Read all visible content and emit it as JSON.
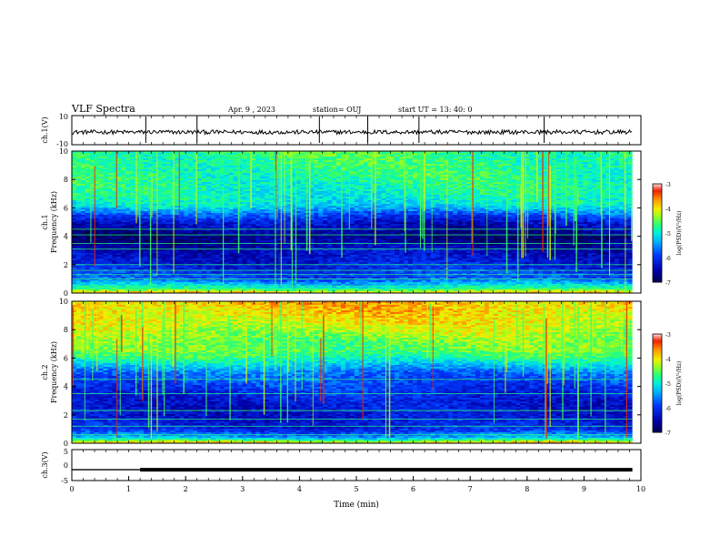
{
  "header": {
    "title": "VLF Spectra",
    "date": "Apr. 9 , 2023",
    "station": "station= OUJ",
    "start_time": "start UT = 13: 40: 0"
  },
  "chart_data": [
    {
      "type": "line",
      "name": "ch1-waveform",
      "ylabel": "ch.1(V)",
      "ylim": [
        -10,
        10
      ],
      "tick_labels": [
        "10",
        "-10"
      ],
      "xlim": [
        0,
        10
      ],
      "spikes_min": [
        2.2,
        4.35,
        8.3,
        1.3,
        5.2,
        6.1
      ]
    },
    {
      "type": "heatmap",
      "name": "ch1-spectrogram",
      "ylabel_channel": "ch.1",
      "ylabel": "Frequency (kHz)",
      "ylim": [
        0,
        10
      ],
      "y_ticks": [
        "0",
        "2",
        "4",
        "6",
        "8",
        "10"
      ],
      "xlim": [
        0,
        9.85
      ],
      "colorbar": {
        "label": "log(PSD)(V²/Hz)",
        "range": [
          -7,
          -3
        ],
        "ticks": [
          "-3",
          "-4",
          "-5",
          "-6",
          "-7"
        ]
      },
      "intensity_profile": [
        {
          "f": 0.0,
          "v": 0.78
        },
        {
          "f": 0.3,
          "v": 0.55
        },
        {
          "f": 1.0,
          "v": 0.3
        },
        {
          "f": 2.0,
          "v": 0.2
        },
        {
          "f": 3.0,
          "v": 0.15
        },
        {
          "f": 4.0,
          "v": 0.06
        },
        {
          "f": 5.0,
          "v": 0.18
        },
        {
          "f": 5.6,
          "v": 0.32
        },
        {
          "f": 6.2,
          "v": 0.48
        },
        {
          "f": 7.0,
          "v": 0.52
        },
        {
          "f": 8.0,
          "v": 0.55
        },
        {
          "f": 10.0,
          "v": 0.58
        }
      ],
      "horizontal_lines_khz": [
        0.3,
        0.5,
        1.0,
        1.3,
        1.6,
        2.0,
        3.1,
        3.5,
        4.1,
        4.5
      ]
    },
    {
      "type": "heatmap",
      "name": "ch2-spectrogram",
      "ylabel_channel": "ch.2",
      "ylabel": "Frequency (kHz)",
      "ylim": [
        0,
        10
      ],
      "y_ticks": [
        "0",
        "2",
        "4",
        "6",
        "8",
        "10"
      ],
      "xlim": [
        0,
        9.85
      ],
      "colorbar": {
        "label": "log(PSD)(V²/Hz)",
        "range": [
          -7,
          -3
        ],
        "ticks": [
          "-3",
          "-4",
          "-5",
          "-6",
          "-7"
        ]
      },
      "intensity_profile": [
        {
          "f": 0.0,
          "v": 0.8
        },
        {
          "f": 0.4,
          "v": 0.4
        },
        {
          "f": 1.0,
          "v": 0.22
        },
        {
          "f": 2.0,
          "v": 0.18
        },
        {
          "f": 3.0,
          "v": 0.2
        },
        {
          "f": 4.0,
          "v": 0.26
        },
        {
          "f": 5.0,
          "v": 0.34
        },
        {
          "f": 6.0,
          "v": 0.55
        },
        {
          "f": 6.5,
          "v": 0.62
        },
        {
          "f": 7.0,
          "v": 0.62
        },
        {
          "f": 8.0,
          "v": 0.7
        },
        {
          "f": 9.0,
          "v": 0.76
        },
        {
          "f": 10.0,
          "v": 0.8
        }
      ],
      "horizontal_lines_khz": [
        0.6,
        1.2,
        1.7,
        2.3,
        3.5,
        4.5,
        6.3
      ]
    },
    {
      "type": "line",
      "name": "ch3-waveform",
      "ylabel": "ch.3(V)",
      "ylim": [
        -5,
        5
      ],
      "tick_labels": [
        "5",
        "0",
        "-5"
      ],
      "xlim": [
        0,
        10
      ],
      "xlabel": "Time (min)",
      "x_ticks": [
        "0",
        "1",
        "2",
        "3",
        "4",
        "5",
        "6",
        "7",
        "8",
        "9",
        "10"
      ],
      "segments": [
        {
          "from": 0,
          "to": 1.2,
          "value": -1.5,
          "weight": "thin"
        },
        {
          "from": 1.2,
          "to": 9.85,
          "value": -1.5,
          "weight": "thick"
        }
      ]
    }
  ]
}
